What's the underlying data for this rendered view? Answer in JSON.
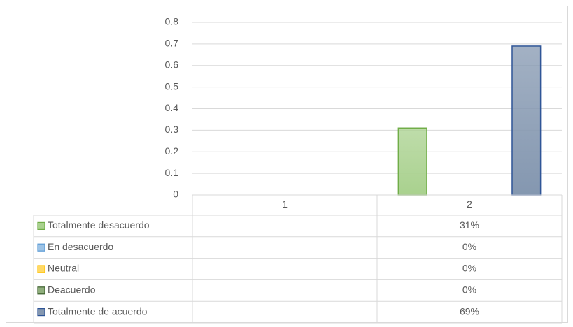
{
  "chart_data": {
    "type": "bar",
    "categories": [
      "1",
      "2"
    ],
    "series": [
      {
        "name": "Totalmente desacuerdo",
        "color": "#a9d18e",
        "border": "#70ad47",
        "values": [
          null,
          0.31
        ],
        "value_labels": [
          null,
          "31%"
        ]
      },
      {
        "name": "En desacuerdo",
        "color": "#9dc3e6",
        "border": "#5b9bd5",
        "values": [
          null,
          0
        ],
        "value_labels": [
          null,
          "0%"
        ]
      },
      {
        "name": "Neutral",
        "color": "#ffd966",
        "border": "#ffc000",
        "values": [
          null,
          0
        ],
        "value_labels": [
          null,
          "0%"
        ]
      },
      {
        "name": "Deacuerdo",
        "color": "#8fae7c",
        "border": "#3b5e2b",
        "values": [
          null,
          0
        ],
        "value_labels": [
          null,
          "0%"
        ]
      },
      {
        "name": "Totalmente de acuerdo",
        "color": "#8497b0",
        "border": "#2f5597",
        "values": [
          null,
          0.69
        ],
        "value_labels": [
          null,
          "69%"
        ]
      }
    ],
    "ylim": [
      0,
      0.8
    ],
    "yticks": [
      0,
      0.1,
      0.2,
      0.3,
      0.4,
      0.5,
      0.6,
      0.7,
      0.8
    ],
    "grid": true
  }
}
